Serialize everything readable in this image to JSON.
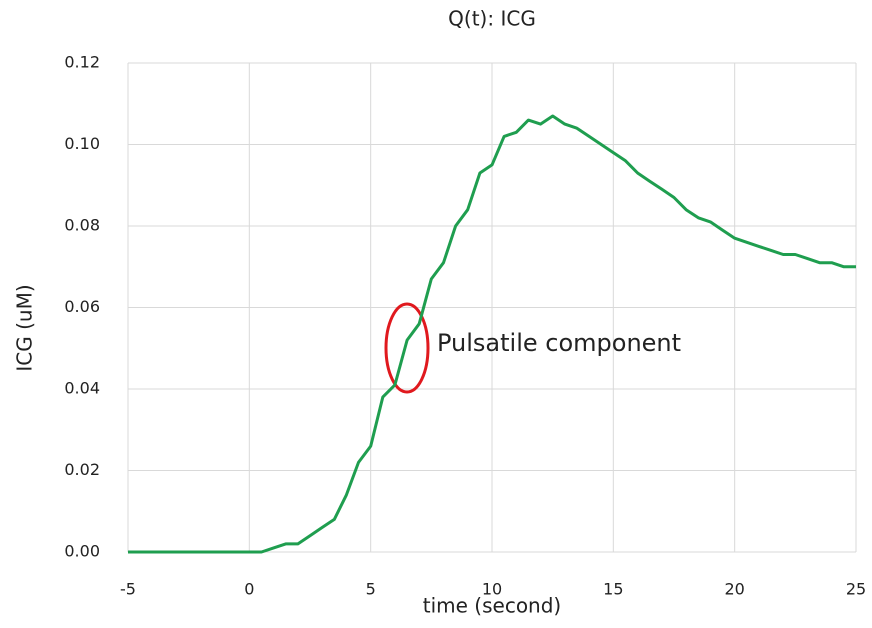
{
  "chart_data": {
    "type": "line",
    "title": "Q(t): ICG",
    "x_label": "time (second)",
    "y_label": "ICG (uM)",
    "annotation": "Pulsatile component",
    "x": [
      -5,
      -4.5,
      -4,
      -3.5,
      -3,
      -2.5,
      -2,
      -1.5,
      -1,
      -0.5,
      0,
      0.5,
      1,
      1.5,
      2,
      2.5,
      3,
      3.5,
      4,
      4.5,
      5,
      5.5,
      6,
      6.5,
      7,
      7.5,
      8,
      8.5,
      9,
      9.5,
      10,
      10.5,
      11,
      11.5,
      12,
      12.5,
      13,
      13.5,
      14,
      14.5,
      15,
      15.5,
      16,
      16.5,
      17,
      17.5,
      18,
      18.5,
      19,
      19.5,
      20,
      20.5,
      21,
      21.5,
      22,
      22.5,
      23,
      23.5,
      24,
      24.5,
      25
    ],
    "values": [
      0,
      0,
      0,
      0,
      0,
      0,
      0,
      0,
      0,
      0,
      0,
      0,
      0.001,
      0.002,
      0.002,
      0.004,
      0.006,
      0.008,
      0.014,
      0.022,
      0.026,
      0.038,
      0.041,
      0.052,
      0.056,
      0.067,
      0.071,
      0.08,
      0.084,
      0.093,
      0.095,
      0.102,
      0.103,
      0.106,
      0.105,
      0.107,
      0.105,
      0.104,
      0.102,
      0.1,
      0.098,
      0.096,
      0.093,
      0.091,
      0.089,
      0.087,
      0.084,
      0.082,
      0.081,
      0.079,
      0.077,
      0.076,
      0.075,
      0.074,
      0.073,
      0.073,
      0.072,
      0.071,
      0.071,
      0.07,
      0.07
    ],
    "color": "#1f9e4f",
    "xlim": [
      -5,
      25
    ],
    "xticks": [
      -5,
      0,
      5,
      10,
      15,
      20,
      25
    ],
    "ylim": [
      0,
      0.12
    ],
    "yticks": [
      {
        "value": 0,
        "label": "0.00"
      },
      {
        "value": 0.02,
        "label": "0.02"
      },
      {
        "value": 0.04,
        "label": "0.04"
      },
      {
        "value": 0.06,
        "label": "0.06"
      },
      {
        "value": 0.08,
        "label": "0.08"
      },
      {
        "value": 0.1,
        "label": "0.10"
      },
      {
        "value": 0.12,
        "label": "0.12"
      }
    ],
    "grid": true
  }
}
